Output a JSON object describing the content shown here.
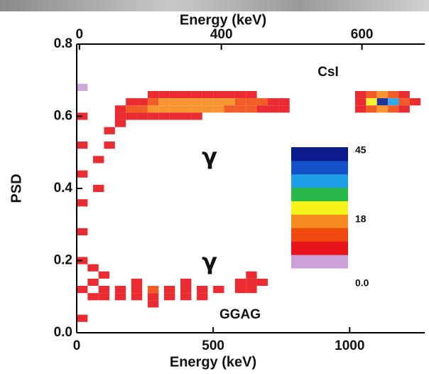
{
  "chart_data": {
    "type": "heatmap",
    "xlabel": "Energy (keV)",
    "x2label": "Energy (keV)",
    "ylabel": "PSD",
    "xlim": [
      0,
      1275
    ],
    "ylim": [
      0,
      0.8
    ],
    "xticks": [
      0,
      500,
      1000
    ],
    "x2ticks": [
      {
        "value": 10,
        "label": "0"
      },
      {
        "value": 530,
        "label": "400"
      },
      {
        "value": 1045,
        "label": "600"
      }
    ],
    "yticks": [
      {
        "value": 0,
        "label": "0.0"
      },
      {
        "value": 0.2,
        "label": "0.2"
      },
      {
        "value": 0.4,
        "label": "0.4"
      },
      {
        "value": 0.6,
        "label": "0.6"
      },
      {
        "value": 0.8,
        "label": "0.8"
      }
    ],
    "xbin": 40,
    "ybin": 0.02,
    "zlim": [
      0,
      45
    ],
    "colors": [
      "#c9a0d8",
      "#e8141c",
      "#f04a10",
      "#f68a1c",
      "#f6f21a",
      "#2ab84a",
      "#1ea0e8",
      "#1450c8",
      "#0a1c8c"
    ],
    "colorbar_ticks": [
      45,
      18,
      {
        "value": 0,
        "label": "0.0"
      }
    ],
    "annotations": [
      "CsI",
      "GGAG",
      "γ",
      "γ"
    ],
    "cells": [
      [
        160,
        0.62,
        6
      ],
      [
        160,
        0.6,
        8
      ],
      [
        160,
        0.58,
        6
      ],
      [
        200,
        0.64,
        6
      ],
      [
        200,
        0.62,
        10
      ],
      [
        200,
        0.6,
        9
      ],
      [
        240,
        0.64,
        9
      ],
      [
        240,
        0.62,
        13
      ],
      [
        240,
        0.6,
        8
      ],
      [
        280,
        0.66,
        6
      ],
      [
        280,
        0.64,
        14
      ],
      [
        280,
        0.62,
        16
      ],
      [
        280,
        0.6,
        8
      ],
      [
        320,
        0.66,
        8
      ],
      [
        320,
        0.64,
        17
      ],
      [
        320,
        0.62,
        17
      ],
      [
        320,
        0.6,
        7
      ],
      [
        360,
        0.66,
        9
      ],
      [
        360,
        0.64,
        18
      ],
      [
        360,
        0.62,
        18
      ],
      [
        360,
        0.6,
        7
      ],
      [
        400,
        0.66,
        9
      ],
      [
        400,
        0.64,
        18
      ],
      [
        400,
        0.62,
        17
      ],
      [
        400,
        0.6,
        6
      ],
      [
        440,
        0.66,
        8
      ],
      [
        440,
        0.64,
        17
      ],
      [
        440,
        0.62,
        17
      ],
      [
        440,
        0.6,
        6
      ],
      [
        480,
        0.66,
        8
      ],
      [
        480,
        0.64,
        17
      ],
      [
        480,
        0.62,
        16
      ],
      [
        520,
        0.66,
        7
      ],
      [
        520,
        0.64,
        16
      ],
      [
        520,
        0.62,
        15
      ],
      [
        560,
        0.66,
        7
      ],
      [
        560,
        0.64,
        15
      ],
      [
        560,
        0.62,
        13
      ],
      [
        600,
        0.66,
        6
      ],
      [
        600,
        0.64,
        14
      ],
      [
        600,
        0.62,
        12
      ],
      [
        640,
        0.66,
        6
      ],
      [
        640,
        0.64,
        13
      ],
      [
        640,
        0.62,
        10
      ],
      [
        680,
        0.64,
        11
      ],
      [
        680,
        0.62,
        8
      ],
      [
        720,
        0.64,
        9
      ],
      [
        720,
        0.62,
        7
      ],
      [
        760,
        0.64,
        7
      ],
      [
        760,
        0.62,
        5
      ],
      [
        120,
        0.56,
        6
      ],
      [
        120,
        0.52,
        5
      ],
      [
        80,
        0.48,
        5
      ],
      [
        80,
        0.4,
        5
      ],
      [
        1040,
        0.66,
        6
      ],
      [
        1040,
        0.64,
        8
      ],
      [
        1040,
        0.62,
        6
      ],
      [
        1080,
        0.66,
        12
      ],
      [
        1080,
        0.64,
        22
      ],
      [
        1080,
        0.62,
        12
      ],
      [
        1120,
        0.66,
        16
      ],
      [
        1120,
        0.64,
        42
      ],
      [
        1120,
        0.62,
        18
      ],
      [
        1160,
        0.66,
        14
      ],
      [
        1160,
        0.64,
        30
      ],
      [
        1160,
        0.62,
        14
      ],
      [
        1200,
        0.66,
        8
      ],
      [
        1200,
        0.64,
        14
      ],
      [
        1200,
        0.62,
        8
      ],
      [
        1240,
        0.64,
        6
      ],
      [
        20,
        0.04,
        7
      ],
      [
        20,
        0.12,
        8
      ],
      [
        20,
        0.2,
        7
      ],
      [
        20,
        0.28,
        6
      ],
      [
        20,
        0.36,
        6
      ],
      [
        20,
        0.44,
        5
      ],
      [
        20,
        0.52,
        6
      ],
      [
        20,
        0.6,
        5
      ],
      [
        20,
        0.68,
        4
      ],
      [
        60,
        0.1,
        8
      ],
      [
        60,
        0.14,
        7
      ],
      [
        60,
        0.18,
        6
      ],
      [
        100,
        0.1,
        7
      ],
      [
        100,
        0.12,
        8
      ],
      [
        100,
        0.16,
        6
      ],
      [
        160,
        0.1,
        7
      ],
      [
        160,
        0.12,
        8
      ],
      [
        220,
        0.1,
        8
      ],
      [
        220,
        0.12,
        9
      ],
      [
        220,
        0.14,
        6
      ],
      [
        280,
        0.08,
        6
      ],
      [
        280,
        0.1,
        9
      ],
      [
        280,
        0.12,
        10
      ],
      [
        340,
        0.1,
        9
      ],
      [
        340,
        0.12,
        9
      ],
      [
        400,
        0.1,
        8
      ],
      [
        400,
        0.12,
        9
      ],
      [
        400,
        0.14,
        6
      ],
      [
        460,
        0.1,
        7
      ],
      [
        460,
        0.12,
        8
      ],
      [
        520,
        0.12,
        6
      ],
      [
        600,
        0.12,
        8
      ],
      [
        600,
        0.14,
        7
      ],
      [
        640,
        0.12,
        9
      ],
      [
        640,
        0.14,
        9
      ],
      [
        640,
        0.16,
        6
      ],
      [
        680,
        0.14,
        7
      ]
    ]
  }
}
